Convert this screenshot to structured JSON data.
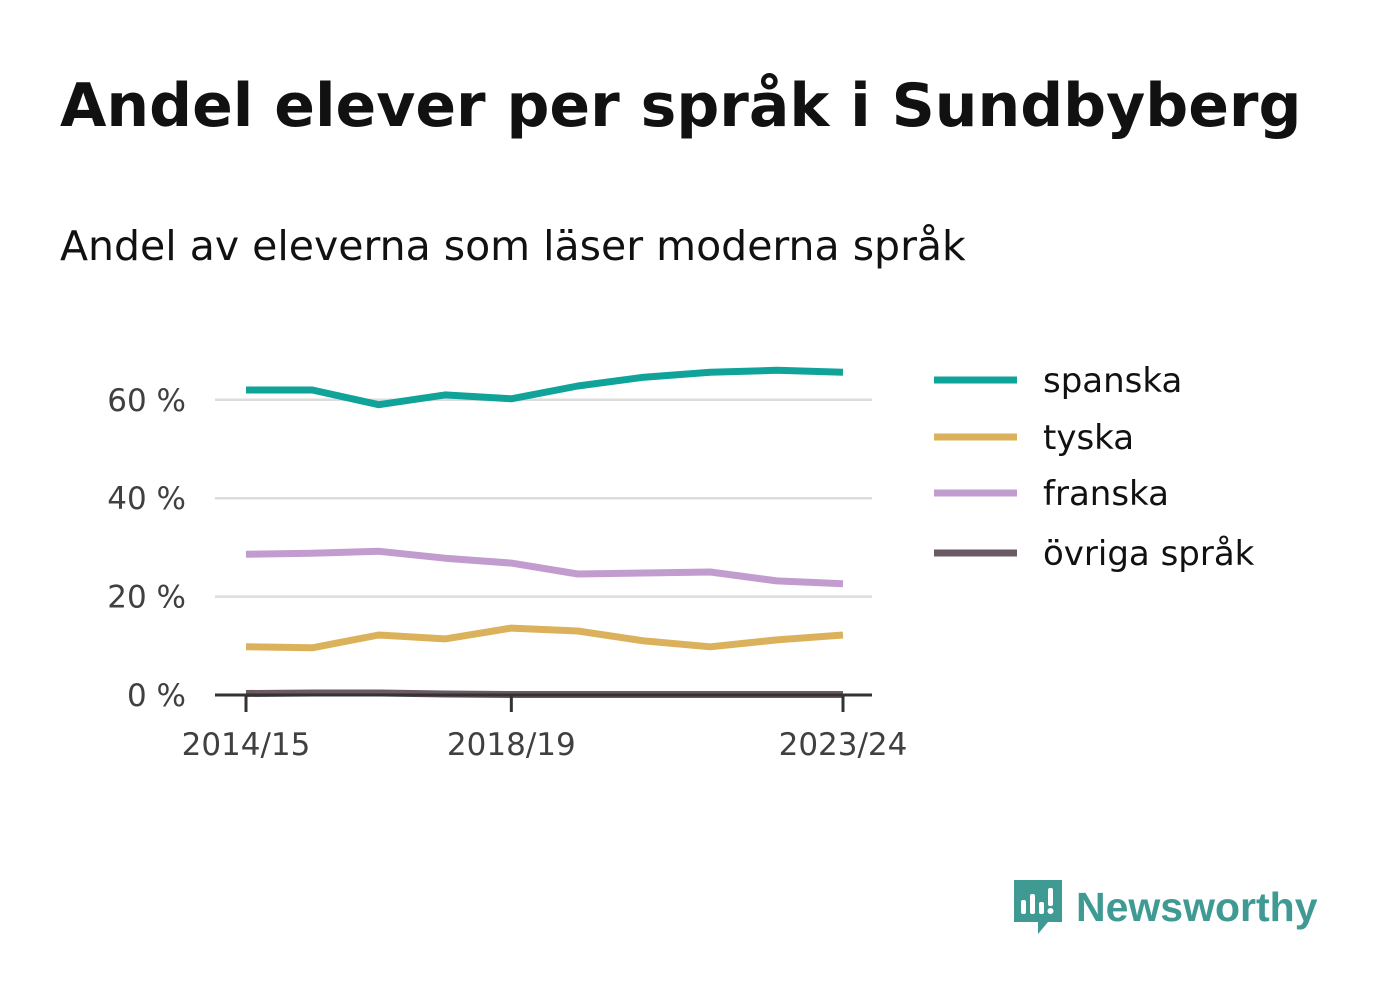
{
  "title": "Andel elever per språk i Sundbyberg",
  "subtitle": "Andel av eleverna som läser moderna språk",
  "brand": {
    "name": "Newsworthy",
    "color": "#3e9a93"
  },
  "chart_data": {
    "type": "line",
    "x": [
      "2014/15",
      "2015/16",
      "2016/17",
      "2017/18",
      "2018/19",
      "2019/20",
      "2020/21",
      "2021/22",
      "2022/23",
      "2023/24"
    ],
    "x_tick_labels": [
      "2014/15",
      "2018/19",
      "2023/24"
    ],
    "y_ticks": [
      0,
      20,
      40,
      60
    ],
    "y_tick_labels": [
      "0 %",
      "20 %",
      "40 %",
      "60 %"
    ],
    "ylim": [
      0,
      70
    ],
    "grid": "horizontal",
    "legend_position": "right",
    "series": [
      {
        "name": "spanska",
        "color": "#0fa39a",
        "values": [
          62.0,
          62.0,
          59.0,
          61.0,
          60.2,
          62.8,
          64.6,
          65.6,
          66.0,
          65.6
        ]
      },
      {
        "name": "tyska",
        "color": "#dbb25b",
        "values": [
          9.8,
          9.6,
          12.2,
          11.4,
          13.6,
          13.0,
          11.0,
          9.8,
          11.2,
          12.2
        ]
      },
      {
        "name": "franska",
        "color": "#c39ccf",
        "values": [
          28.6,
          28.8,
          29.2,
          27.8,
          26.8,
          24.6,
          24.8,
          25.0,
          23.2,
          22.6
        ]
      },
      {
        "name": "övriga språk",
        "color": "#6b5a63",
        "values": [
          0.3,
          0.4,
          0.4,
          0.2,
          0.1,
          0.1,
          0.1,
          0.1,
          0.1,
          0.1
        ]
      }
    ]
  }
}
